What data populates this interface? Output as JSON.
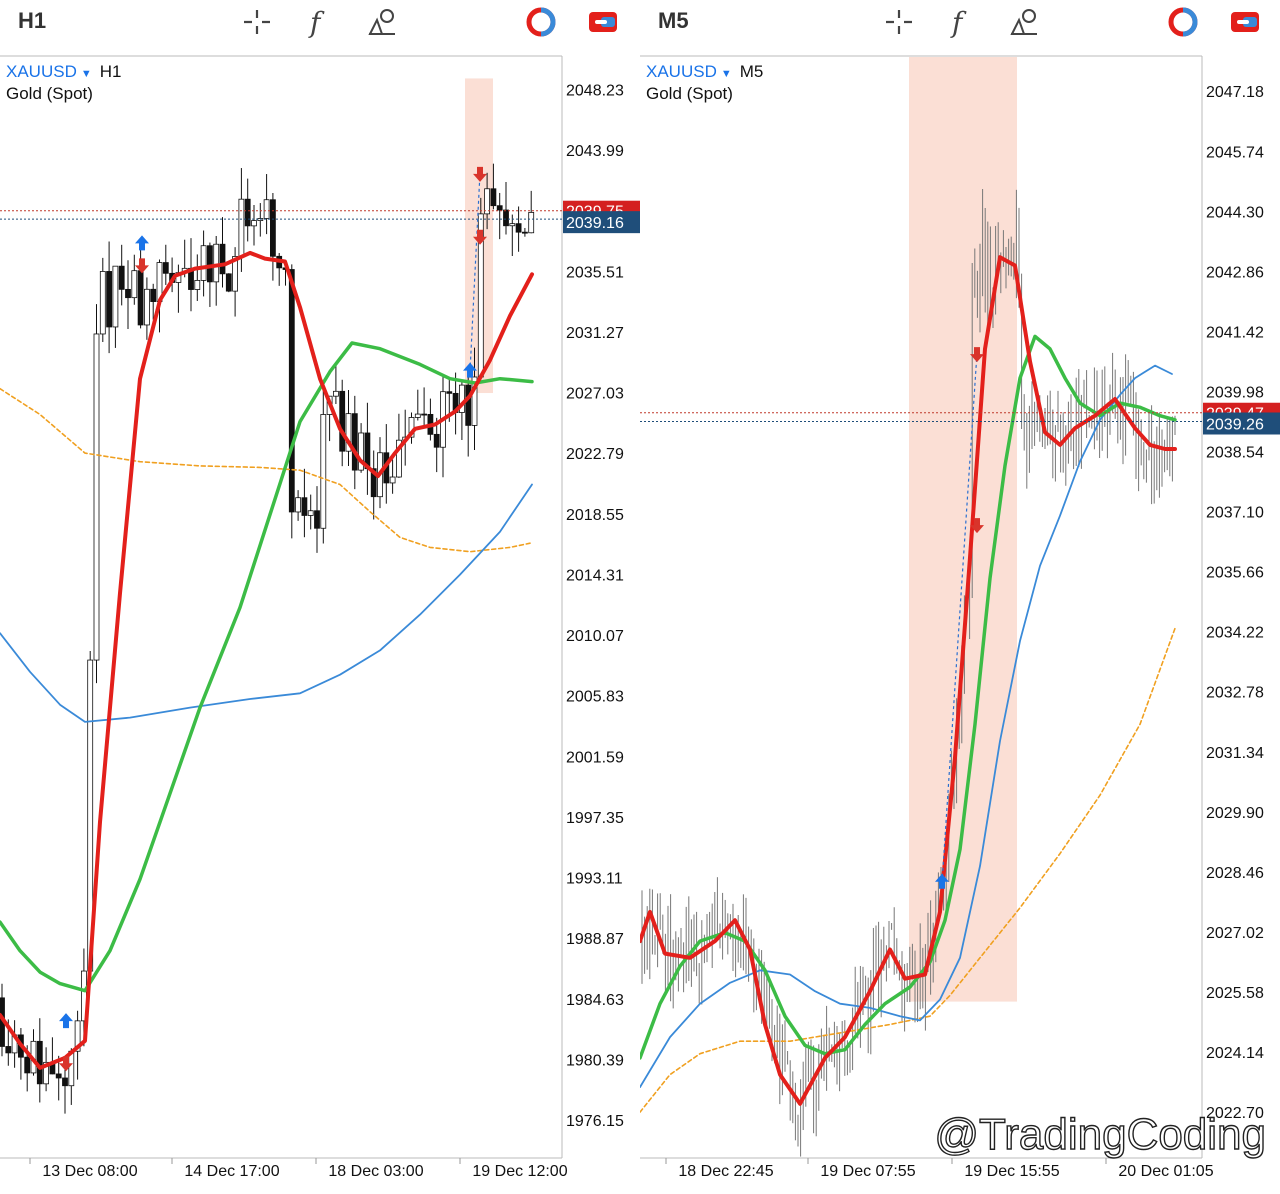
{
  "colors": {
    "ma_red": "#e3201b",
    "ma_green": "#3cbc46",
    "ma_blue": "#3a8ad8",
    "ma_orange": "#f0a020",
    "highlight": "#fbdcd0",
    "price_box": "#1f4e7a",
    "price_box_red": "#d42020",
    "symbol_blue": "#1a73e8"
  },
  "panes": [
    {
      "timeframe": "H1",
      "symbol": "XAUUSD",
      "symbol_timeframe": "H1",
      "description": "Gold (Spot)",
      "icons": [
        "crosshair-icon",
        "function-icon",
        "objects-icon",
        "indicator-toggle-icon",
        "chart-type-icon"
      ],
      "current_price_label": "2039.16",
      "hidden_price_label": "2039.75",
      "chart_data": {
        "type": "line",
        "title": "XAUUSD, H1",
        "yticks": [
          "2048.23",
          "2043.99",
          "2039.75",
          "2035.51",
          "2031.27",
          "2027.03",
          "2022.79",
          "2018.55",
          "2014.31",
          "2010.07",
          "2005.83",
          "2001.59",
          "1997.35",
          "1993.11",
          "1988.87",
          "1984.63",
          "1980.39",
          "1976.15"
        ],
        "xticks": [
          "13 Dec 08:00",
          "14 Dec 17:00",
          "18 Dec 03:00",
          "19 Dec 12:00"
        ],
        "ylim": [
          1973.5,
          2050.5
        ],
        "series": [
          {
            "color": "red",
            "values": [
              [
                0,
                1983.5
              ],
              [
                20,
                1981.5
              ],
              [
                40,
                1979.8
              ],
              [
                65,
                1980.5
              ],
              [
                85,
                1981.7
              ],
              [
                100,
                1997
              ],
              [
                120,
                2013
              ],
              [
                140,
                2028
              ],
              [
                160,
                2033.5
              ],
              [
                175,
                2035.2
              ],
              [
                195,
                2035.7
              ],
              [
                225,
                2036.0
              ],
              [
                250,
                2036.8
              ],
              [
                265,
                2036.4
              ],
              [
                285,
                2036.2
              ],
              [
                300,
                2033
              ],
              [
                320,
                2028
              ],
              [
                340,
                2024.5
              ],
              [
                360,
                2022.3
              ],
              [
                378,
                2021.2
              ],
              [
                395,
                2022.8
              ],
              [
                415,
                2024.5
              ],
              [
                435,
                2024.8
              ],
              [
                455,
                2025.7
              ],
              [
                470,
                2026.8
              ],
              [
                490,
                2029.3
              ],
              [
                510,
                2032.4
              ],
              [
                532,
                2035.3
              ]
            ]
          },
          {
            "color": "green",
            "values": [
              [
                0,
                1990.0
              ],
              [
                20,
                1988
              ],
              [
                40,
                1986.5
              ],
              [
                60,
                1985.7
              ],
              [
                85,
                1985.2
              ],
              [
                110,
                1988
              ],
              [
                140,
                1993
              ],
              [
                170,
                1999
              ],
              [
                200,
                2005
              ],
              [
                240,
                2012
              ],
              [
                270,
                2018.5
              ],
              [
                300,
                2025
              ],
              [
                330,
                2028.5
              ],
              [
                352,
                2030.5
              ],
              [
                380,
                2030.1
              ],
              [
                420,
                2029.0
              ],
              [
                450,
                2028.0
              ],
              [
                475,
                2027.7
              ],
              [
                500,
                2028.0
              ],
              [
                532,
                2027.8
              ]
            ]
          },
          {
            "color": "blue",
            "values": [
              [
                0,
                2010.2
              ],
              [
                30,
                2007.5
              ],
              [
                60,
                2005.2
              ],
              [
                85,
                2004.0
              ],
              [
                130,
                2004.3
              ],
              [
                190,
                2005.0
              ],
              [
                250,
                2005.6
              ],
              [
                300,
                2006.0
              ],
              [
                340,
                2007.3
              ],
              [
                380,
                2009.0
              ],
              [
                420,
                2011.5
              ],
              [
                460,
                2014.3
              ],
              [
                500,
                2017.3
              ],
              [
                532,
                2020.6
              ]
            ]
          },
          {
            "color": "orange",
            "values": [
              [
                0,
                2027.3
              ],
              [
                40,
                2025.5
              ],
              [
                85,
                2022.8
              ],
              [
                140,
                2022.2
              ],
              [
                200,
                2021.9
              ],
              [
                260,
                2021.8
              ],
              [
                300,
                2021.6
              ],
              [
                340,
                2020.6
              ],
              [
                370,
                2018.7
              ],
              [
                400,
                2016.9
              ],
              [
                430,
                2016.2
              ],
              [
                470,
                2015.9
              ],
              [
                510,
                2016.2
              ],
              [
                530,
                2016.5
              ]
            ]
          }
        ],
        "price_range": [
          1974.5,
          2049.0
        ]
      }
    },
    {
      "timeframe": "M5",
      "symbol": "XAUUSD",
      "symbol_timeframe": "M5",
      "description": "Gold (Spot)",
      "icons": [
        "crosshair-icon",
        "function-icon",
        "objects-icon",
        "indicator-toggle-icon",
        "chart-type-icon"
      ],
      "current_price_label": "2039.26",
      "hidden_price_label": "2039.47",
      "chart_data": {
        "type": "line",
        "title": "XAUUSD, M5",
        "yticks": [
          "2047.18",
          "2045.74",
          "2044.30",
          "2042.86",
          "2041.42",
          "2039.98",
          "2038.54",
          "2037.10",
          "2035.66",
          "2034.22",
          "2032.78",
          "2031.34",
          "2029.90",
          "2028.46",
          "2027.02",
          "2025.58",
          "2024.14",
          "2022.70"
        ],
        "xticks": [
          "18 Dec 22:45",
          "19 Dec 07:55",
          "19 Dec 15:55",
          "20 Dec 01:05"
        ],
        "ylim": [
          2021.6,
          2048.0
        ],
        "series": [
          {
            "color": "red",
            "values": [
              [
                0,
                2026.8
              ],
              [
                10,
                2027.5
              ],
              [
                25,
                2026.5
              ],
              [
                50,
                2026.4
              ],
              [
                75,
                2026.8
              ],
              [
                95,
                2027.3
              ],
              [
                110,
                2026.6
              ],
              [
                125,
                2024.8
              ],
              [
                140,
                2023.6
              ],
              [
                160,
                2022.9
              ],
              [
                185,
                2024.0
              ],
              [
                205,
                2024.5
              ],
              [
                230,
                2025.6
              ],
              [
                250,
                2026.6
              ],
              [
                265,
                2025.9
              ],
              [
                285,
                2026.0
              ],
              [
                300,
                2027.5
              ],
              [
                315,
                2031.2
              ],
              [
                330,
                2036.0
              ],
              [
                345,
                2041.0
              ],
              [
                360,
                2043.2
              ],
              [
                375,
                2043.0
              ],
              [
                390,
                2040.7
              ],
              [
                405,
                2039.0
              ],
              [
                420,
                2038.7
              ],
              [
                435,
                2039.1
              ],
              [
                455,
                2039.4
              ],
              [
                475,
                2039.8
              ],
              [
                495,
                2039.1
              ],
              [
                510,
                2038.7
              ],
              [
                525,
                2038.6
              ],
              [
                535,
                2038.6
              ]
            ]
          },
          {
            "color": "green",
            "values": [
              [
                0,
                2024.0
              ],
              [
                20,
                2025.3
              ],
              [
                40,
                2026.2
              ],
              [
                60,
                2026.8
              ],
              [
                85,
                2027.0
              ],
              [
                105,
                2026.8
              ],
              [
                125,
                2026.1
              ],
              [
                145,
                2025.0
              ],
              [
                165,
                2024.3
              ],
              [
                185,
                2024.1
              ],
              [
                205,
                2024.2
              ],
              [
                225,
                2024.8
              ],
              [
                245,
                2025.3
              ],
              [
                270,
                2025.7
              ],
              [
                290,
                2026.3
              ],
              [
                305,
                2027.3
              ],
              [
                320,
                2029.0
              ],
              [
                335,
                2032.0
              ],
              [
                350,
                2035.5
              ],
              [
                365,
                2038.2
              ],
              [
                380,
                2040.3
              ],
              [
                395,
                2041.3
              ],
              [
                410,
                2041.0
              ],
              [
                425,
                2040.3
              ],
              [
                440,
                2039.7
              ],
              [
                460,
                2039.4
              ],
              [
                480,
                2039.7
              ],
              [
                500,
                2039.6
              ],
              [
                520,
                2039.4
              ],
              [
                535,
                2039.3
              ]
            ]
          },
          {
            "color": "blue",
            "values": [
              [
                0,
                2023.3
              ],
              [
                30,
                2024.5
              ],
              [
                60,
                2025.3
              ],
              [
                90,
                2025.8
              ],
              [
                120,
                2026.1
              ],
              [
                150,
                2026.0
              ],
              [
                175,
                2025.6
              ],
              [
                200,
                2025.3
              ],
              [
                230,
                2025.2
              ],
              [
                260,
                2025.0
              ],
              [
                280,
                2024.9
              ],
              [
                300,
                2025.4
              ],
              [
                320,
                2026.4
              ],
              [
                340,
                2028.6
              ],
              [
                360,
                2031.6
              ],
              [
                380,
                2034.0
              ],
              [
                400,
                2035.8
              ],
              [
                420,
                2037.0
              ],
              [
                440,
                2038.3
              ],
              [
                460,
                2039.3
              ],
              [
                480,
                2039.9
              ],
              [
                495,
                2040.3
              ],
              [
                515,
                2040.6
              ],
              [
                532,
                2040.4
              ]
            ]
          },
          {
            "color": "orange",
            "values": [
              [
                0,
                2022.7
              ],
              [
                30,
                2023.6
              ],
              [
                60,
                2024.1
              ],
              [
                100,
                2024.4
              ],
              [
                150,
                2024.4
              ],
              [
                200,
                2024.6
              ],
              [
                250,
                2024.8
              ],
              [
                290,
                2025.0
              ],
              [
                310,
                2025.5
              ],
              [
                340,
                2026.4
              ],
              [
                380,
                2027.6
              ],
              [
                420,
                2028.9
              ],
              [
                460,
                2030.3
              ],
              [
                500,
                2032.0
              ],
              [
                535,
                2034.3
              ]
            ]
          }
        ],
        "price_range": [
          2022.3,
          2047.0
        ]
      }
    }
  ],
  "watermark": "@TradingCoding"
}
